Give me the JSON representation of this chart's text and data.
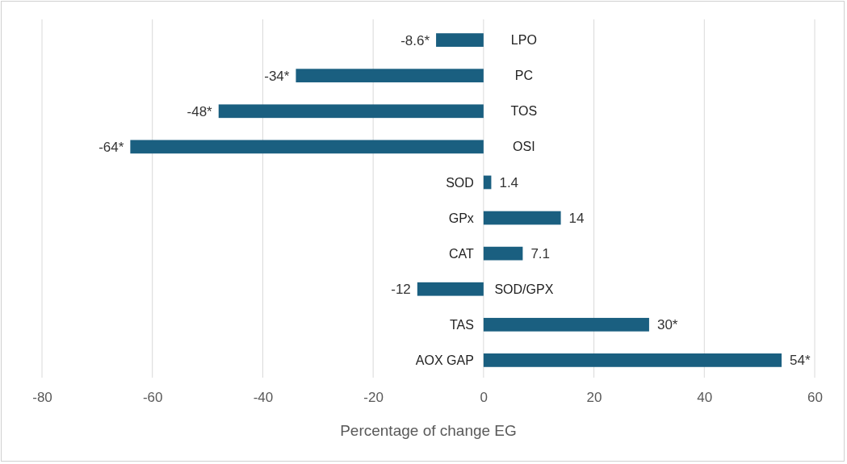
{
  "chart_data": {
    "type": "bar",
    "orientation": "horizontal",
    "xlabel": "Percentage of change EG",
    "categories": [
      "LPO",
      "PC",
      "TOS",
      "OSI",
      "SOD",
      "GPx",
      "CAT",
      "SOD/GPX",
      "TAS",
      "AOX GAP"
    ],
    "values": [
      -8.6,
      -34,
      -48,
      -64,
      1.4,
      14,
      7.1,
      -12,
      30,
      54
    ],
    "value_labels": [
      "-8.6*",
      "-34*",
      "-48*",
      "-64*",
      "1.4",
      "14",
      "7.1",
      "-12",
      "30*",
      "54*"
    ],
    "color": "#1a5f80",
    "xlim": [
      -80,
      60
    ],
    "xticks": [
      -80,
      -60,
      -40,
      -20,
      0,
      20,
      40,
      60
    ],
    "grid": "x"
  }
}
